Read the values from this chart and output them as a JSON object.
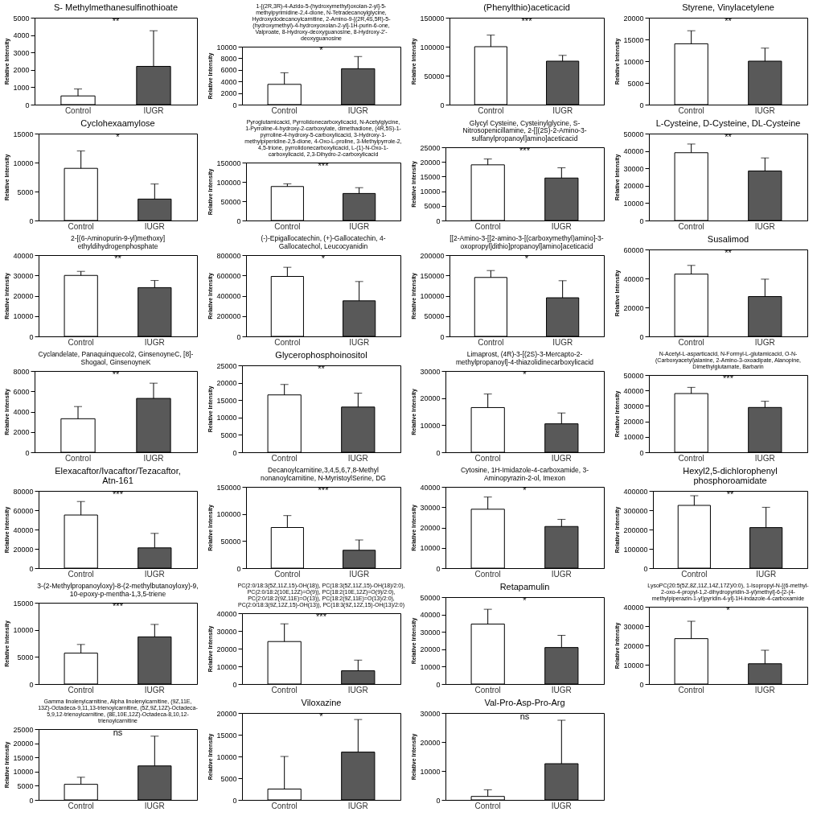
{
  "chart_data": [
    {
      "type": "bar",
      "title": "S- Methylmethanesulfinothioate",
      "ylabel": "Relative Intensity",
      "categories": [
        "Control",
        "IUGR"
      ],
      "values": [
        500,
        2200
      ],
      "errors": [
        400,
        2050
      ],
      "colors": [
        "#ffffff",
        "#595959"
      ],
      "ylim": [
        0,
        5000
      ],
      "yticks": [
        0,
        1000,
        2000,
        3000,
        4000,
        5000
      ],
      "annotations": [
        "**"
      ]
    },
    {
      "type": "bar",
      "title": "1-[(2R,3R)-4-Azido-5-(hydroxymethyl)oxolan-2-yl]-5-methylpyrimidine-2,4-dione, N-Tetradecanoylglycine, Hydroxydodecanoylcarnitine, 2-Amino-9-[(2R,4S,5R)-5-(hydroxymethyl)-4-hydroxyoxolan-2-yl]-1H-purin-6-one, Valproate, 8-Hydroxy-deoxyguanosine, 8-Hydroxy-2'-deoxyguanosine",
      "ylabel": "Relative Intensity",
      "categories": [
        "Control",
        "IUGR"
      ],
      "values": [
        3500,
        6200
      ],
      "errors": [
        2000,
        2100
      ],
      "colors": [
        "#ffffff",
        "#595959"
      ],
      "ylim": [
        0,
        10000
      ],
      "yticks": [
        0,
        2000,
        4000,
        6000,
        8000,
        10000
      ],
      "annotations": [
        "*"
      ]
    },
    {
      "type": "bar",
      "title": "(Phenylthio)aceticacid",
      "ylabel": "Relative Intensity",
      "categories": [
        "Control",
        "IUGR"
      ],
      "values": [
        100000,
        75000
      ],
      "errors": [
        20000,
        10000
      ],
      "colors": [
        "#ffffff",
        "#595959"
      ],
      "ylim": [
        0,
        150000
      ],
      "yticks": [
        0,
        50000,
        100000,
        150000
      ],
      "annotations": [
        "***"
      ]
    },
    {
      "type": "bar",
      "title": "Styrene, Vinylacetylene",
      "ylabel": "Relative Intensity",
      "categories": [
        "Control",
        "IUGR"
      ],
      "values": [
        14000,
        10000
      ],
      "errors": [
        3000,
        3000
      ],
      "colors": [
        "#ffffff",
        "#595959"
      ],
      "ylim": [
        0,
        20000
      ],
      "yticks": [
        0,
        5000,
        10000,
        15000,
        20000
      ],
      "annotations": [
        "**"
      ]
    },
    {
      "type": "bar",
      "title": "Cyclohexaamylose",
      "ylabel": "Relative Intensity",
      "categories": [
        "Control",
        "IUGR"
      ],
      "values": [
        9000,
        3700
      ],
      "errors": [
        3000,
        2600
      ],
      "colors": [
        "#ffffff",
        "#595959"
      ],
      "ylim": [
        0,
        15000
      ],
      "yticks": [
        0,
        5000,
        10000,
        15000
      ],
      "annotations": [
        "*"
      ]
    },
    {
      "type": "bar",
      "title": "Pyroglutamicacid, Pyrrolidonecarboxylicacid, N-Acetylglycine, 1-Pyrroline-4-hydroxy-2-carboxylate, dimethadione, (4R,5S)-1-pyrroline-4-hydroxy-5-carboxylicacid, 3-Hydroxy-1-methylpiperidine-2,5-dione, 4-Oxo-L-proline, 3-Methylpyrrole-2,4,5-trione, pyrrolidonecarboxylicacid, L-(1)-N-Oxo-1-carboxylicacid, 2,3-Dihydro-2-carboxylicacid",
      "ylabel": "Relative Intensity",
      "categories": [
        "Control",
        "IUGR"
      ],
      "values": [
        88000,
        70000
      ],
      "errors": [
        7000,
        15000
      ],
      "colors": [
        "#ffffff",
        "#595959"
      ],
      "ylim": [
        0,
        150000
      ],
      "yticks": [
        0,
        50000,
        100000,
        150000
      ],
      "annotations": [
        "***"
      ]
    },
    {
      "type": "bar",
      "title": "Glycyl Cysteine, Cysteinylglycine, S-Nitrosopenicillamine, 2-[[(2S)-2-Amino-3-sulfanylpropanoyl]amino]aceticacid",
      "ylabel": "Relative Intensity",
      "categories": [
        "Control",
        "IUGR"
      ],
      "values": [
        19000,
        14500
      ],
      "errors": [
        2000,
        3500
      ],
      "colors": [
        "#ffffff",
        "#595959"
      ],
      "ylim": [
        0,
        25000
      ],
      "yticks": [
        0,
        5000,
        10000,
        15000,
        20000,
        25000
      ],
      "annotations": [
        "***"
      ]
    },
    {
      "type": "bar",
      "title": "L-Cysteine, D-Cysteine, DL-Cysteine",
      "ylabel": "Relative Intensity",
      "categories": [
        "Control",
        "IUGR"
      ],
      "values": [
        39000,
        28500
      ],
      "errors": [
        5000,
        7500
      ],
      "colors": [
        "#ffffff",
        "#595959"
      ],
      "ylim": [
        0,
        50000
      ],
      "yticks": [
        0,
        10000,
        20000,
        30000,
        40000,
        50000
      ],
      "annotations": [
        "**"
      ]
    },
    {
      "type": "bar",
      "title": "2-[(6-Aminopurin-9-yl)methoxy] ethyldihydrogenphosphate",
      "ylabel": "Relative Intensity",
      "categories": [
        "Control",
        "IUGR"
      ],
      "values": [
        30000,
        24000
      ],
      "errors": [
        2000,
        3500
      ],
      "colors": [
        "#ffffff",
        "#595959"
      ],
      "ylim": [
        0,
        40000
      ],
      "yticks": [
        0,
        10000,
        20000,
        30000,
        40000
      ],
      "annotations": [
        "**"
      ]
    },
    {
      "type": "bar",
      "title": "(-)-Epigallocatechin, (+)-Gallocatechin, 4-Gallocatechol, Leucocyanidin",
      "ylabel": "Relative Intensity",
      "categories": [
        "Control",
        "IUGR"
      ],
      "values": [
        590000,
        350000
      ],
      "errors": [
        90000,
        190000
      ],
      "colors": [
        "#ffffff",
        "#595959"
      ],
      "ylim": [
        0,
        800000
      ],
      "yticks": [
        0,
        200000,
        400000,
        600000,
        800000
      ],
      "annotations": [
        "*"
      ]
    },
    {
      "type": "bar",
      "title": "[[2-Amino-3-[[2-amino-3-[(carboxymethyl)amino]-3-oxopropyl]dithio]propanoyl]amino]aceticacid",
      "ylabel": "Relative Intensity",
      "categories": [
        "Control",
        "IUGR"
      ],
      "values": [
        145000,
        95000
      ],
      "errors": [
        17000,
        42000
      ],
      "colors": [
        "#ffffff",
        "#595959"
      ],
      "ylim": [
        0,
        200000
      ],
      "yticks": [
        0,
        50000,
        100000,
        150000,
        200000
      ],
      "annotations": [
        "*"
      ]
    },
    {
      "type": "bar",
      "title": "Susalimod",
      "ylabel": "Relative Intensity",
      "categories": [
        "Control",
        "IUGR"
      ],
      "values": [
        43000,
        27500
      ],
      "errors": [
        6000,
        12000
      ],
      "colors": [
        "#ffffff",
        "#595959"
      ],
      "ylim": [
        0,
        60000
      ],
      "yticks": [
        0,
        20000,
        40000,
        60000
      ],
      "annotations": [
        "**"
      ]
    },
    {
      "type": "bar",
      "title": "Cyclandelate, Panaquinquecol2, GinsenoyneC, [8]-Shogaol, GinsenoyneK",
      "ylabel": "Relative Intensity",
      "categories": [
        "Control",
        "IUGR"
      ],
      "values": [
        3300,
        5300
      ],
      "errors": [
        1200,
        1500
      ],
      "colors": [
        "#ffffff",
        "#595959"
      ],
      "ylim": [
        0,
        8000
      ],
      "yticks": [
        0,
        2000,
        4000,
        6000,
        8000
      ],
      "annotations": [
        "**"
      ]
    },
    {
      "type": "bar",
      "title": "Glycerophosphoinositol",
      "ylabel": "Relative Intensity",
      "categories": [
        "Control",
        "IUGR"
      ],
      "values": [
        16500,
        13000
      ],
      "errors": [
        3000,
        4000
      ],
      "colors": [
        "#ffffff",
        "#595959"
      ],
      "ylim": [
        0,
        25000
      ],
      "yticks": [
        0,
        5000,
        10000,
        15000,
        20000,
        25000
      ],
      "annotations": [
        "**"
      ]
    },
    {
      "type": "bar",
      "title": "Limaprost, (4R)-3-[(2S)-3-Mercapto-2-methylpropanoyl]-4-thiazolidinecarboxylicacid",
      "ylabel": "Relative Intensity",
      "categories": [
        "Control",
        "IUGR"
      ],
      "values": [
        16500,
        10500
      ],
      "errors": [
        5000,
        4000
      ],
      "colors": [
        "#ffffff",
        "#595959"
      ],
      "ylim": [
        0,
        30000
      ],
      "yticks": [
        0,
        10000,
        20000,
        30000
      ],
      "annotations": [
        "*"
      ]
    },
    {
      "type": "bar",
      "title": "N-Acetyl-L-asparticacid, N-Formyl-L-glutamicacid, O-N-(Carboxyacetyl)alanine, 2-Amino-3-oxoadipate, Alanopine, Dimethylglutamate, Barbarin",
      "ylabel": "Relative Intensity",
      "categories": [
        "Control",
        "IUGR"
      ],
      "values": [
        38000,
        29000
      ],
      "errors": [
        4000,
        4000
      ],
      "colors": [
        "#ffffff",
        "#595959"
      ],
      "ylim": [
        0,
        50000
      ],
      "yticks": [
        0,
        10000,
        20000,
        30000,
        40000,
        50000
      ],
      "annotations": [
        "***"
      ]
    },
    {
      "type": "bar",
      "title": "Elexacaftor/Ivacaftor/Tezacaftor, Atn-161",
      "ylabel": "Relative Intensity",
      "categories": [
        "Control",
        "IUGR"
      ],
      "values": [
        55000,
        21000
      ],
      "errors": [
        14000,
        15000
      ],
      "colors": [
        "#ffffff",
        "#595959"
      ],
      "ylim": [
        0,
        80000
      ],
      "yticks": [
        0,
        20000,
        40000,
        60000,
        80000
      ],
      "annotations": [
        "***"
      ]
    },
    {
      "type": "bar",
      "title": "Decanoylcarnitine,3,4,5,6,7,8-Methyl nonanoylcarnitine, N-MyristoylSerine, DG",
      "ylabel": "Relative Intensity",
      "categories": [
        "Control",
        "IUGR"
      ],
      "values": [
        75000,
        33000
      ],
      "errors": [
        22000,
        19000
      ],
      "colors": [
        "#ffffff",
        "#595959"
      ],
      "ylim": [
        0,
        150000
      ],
      "yticks": [
        0,
        50000,
        100000,
        150000
      ],
      "annotations": [
        "***"
      ]
    },
    {
      "type": "bar",
      "title": "Cytosine, 1H-Imidazole-4-carboxamide, 3-Aminopyrazin-2-ol, Imexon",
      "ylabel": "Relative Intensity",
      "categories": [
        "Control",
        "IUGR"
      ],
      "values": [
        29000,
        20500
      ],
      "errors": [
        6000,
        3500
      ],
      "colors": [
        "#ffffff",
        "#595959"
      ],
      "ylim": [
        0,
        40000
      ],
      "yticks": [
        0,
        10000,
        20000,
        30000,
        40000
      ],
      "annotations": [
        "*"
      ]
    },
    {
      "type": "bar",
      "title": "Hexyl2,5-dichlorophenyl phosphoroamidate",
      "ylabel": "Relative Intensity",
      "categories": [
        "Control",
        "IUGR"
      ],
      "values": [
        325000,
        210000
      ],
      "errors": [
        50000,
        105000
      ],
      "colors": [
        "#ffffff",
        "#595959"
      ],
      "ylim": [
        0,
        400000
      ],
      "yticks": [
        0,
        100000,
        200000,
        300000,
        400000
      ],
      "annotations": [
        "**"
      ]
    },
    {
      "type": "bar",
      "title": "3-(2-Methylpropanoyloxy)-8-(2-methylbutanoyloxy)-9, 10-epoxy-p-mentha-1,3,5-triene",
      "ylabel": "Relative Intensity",
      "categories": [
        "Control",
        "IUGR"
      ],
      "values": [
        5700,
        8700
      ],
      "errors": [
        1600,
        2300
      ],
      "colors": [
        "#ffffff",
        "#595959"
      ],
      "ylim": [
        0,
        15000
      ],
      "yticks": [
        0,
        5000,
        10000,
        15000
      ],
      "annotations": [
        "***"
      ]
    },
    {
      "type": "bar",
      "title": "PC(2:0/18:3(5Z,11Z,15)-OH(18)), PC(18:3(5Z,11Z,15)-OH(18)/2:0), PC(2:0/18:2(10E,12Z)=O(9)), PC(18:2(10E,12Z)=O(9)/2:0), PC(2:0/18:2(9Z,11E)=O(13)), PC(18:2(9Z,11E)=O(13)/2:0), PC(2:0/18:3(9Z,12Z,15)-OH(13)), PC(18:3(9Z,12Z,15)-OH(13)/2:0)",
      "ylabel": "Relative Intensity",
      "categories": [
        "Control",
        "IUGR"
      ],
      "values": [
        24000,
        7500
      ],
      "errors": [
        10000,
        6000
      ],
      "colors": [
        "#ffffff",
        "#595959"
      ],
      "ylim": [
        0,
        40000
      ],
      "yticks": [
        0,
        10000,
        20000,
        30000,
        40000
      ],
      "annotations": [
        "***"
      ]
    },
    {
      "type": "bar",
      "title": "Retapamulin",
      "ylabel": "Relative Intensity",
      "categories": [
        "Control",
        "IUGR"
      ],
      "values": [
        34500,
        21000
      ],
      "errors": [
        8500,
        7000
      ],
      "colors": [
        "#ffffff",
        "#595959"
      ],
      "ylim": [
        0,
        50000
      ],
      "yticks": [
        0,
        10000,
        20000,
        30000,
        40000,
        50000
      ],
      "annotations": [
        "*"
      ]
    },
    {
      "type": "bar",
      "title": "LysoPC(20:5(5Z,8Z,11Z,14Z,17Z)/0:0), 1-Isopropyl-N-[(6-methyl-2-oxo-4-propyl-1,2-dihydropyridin-3-yl)methyl]-6-[2-(4-methylpiperazin-1-yl)pyridin-4-yl]-1H-indazole-4-carboxamide",
      "ylabel": "Relative Intensity",
      "categories": [
        "Control",
        "IUGR"
      ],
      "values": [
        23500,
        10500
      ],
      "errors": [
        9000,
        7000
      ],
      "colors": [
        "#ffffff",
        "#595959"
      ],
      "ylim": [
        0,
        40000
      ],
      "yticks": [
        0,
        10000,
        20000,
        30000,
        40000
      ],
      "annotations": [
        "*"
      ]
    },
    {
      "type": "bar",
      "title": "Gamma linolenylcarnitine, Alpha linolenylcarnitine, (9Z,11E,13Z)-Octadeca-9,11,13-trienoylcarnitine, (5Z,9Z,12Z)-Octadeca-5,9,12-trienoylcarnitine, (8E,10E,12Z)-Octadeca-8,10,12-trienoylcarnitine",
      "ylabel": "Relative Intensity",
      "categories": [
        "Control",
        "IUGR"
      ],
      "values": [
        5500,
        12000
      ],
      "errors": [
        2500,
        10500
      ],
      "colors": [
        "#ffffff",
        "#595959"
      ],
      "ylim": [
        0,
        25000
      ],
      "yticks": [
        0,
        5000,
        10000,
        15000,
        20000,
        25000
      ],
      "annotations": [
        "ns"
      ]
    },
    {
      "type": "bar",
      "title": "Viloxazine",
      "ylabel": "Relative Intensity",
      "categories": [
        "Control",
        "IUGR"
      ],
      "values": [
        2500,
        11000
      ],
      "errors": [
        7500,
        7500
      ],
      "colors": [
        "#ffffff",
        "#595959"
      ],
      "ylim": [
        0,
        20000
      ],
      "yticks": [
        0,
        5000,
        10000,
        15000,
        20000
      ],
      "annotations": [
        "*"
      ]
    },
    {
      "type": "bar",
      "title": "Val-Pro-Asp-Pro-Arg",
      "ylabel": "Relative Intensity",
      "categories": [
        "Control",
        "IUGR"
      ],
      "values": [
        1200,
        12500
      ],
      "errors": [
        2300,
        15000
      ],
      "colors": [
        "#ffffff",
        "#595959"
      ],
      "ylim": [
        0,
        30000
      ],
      "yticks": [
        0,
        10000,
        20000,
        30000
      ],
      "annotations": [
        "ns"
      ]
    }
  ]
}
